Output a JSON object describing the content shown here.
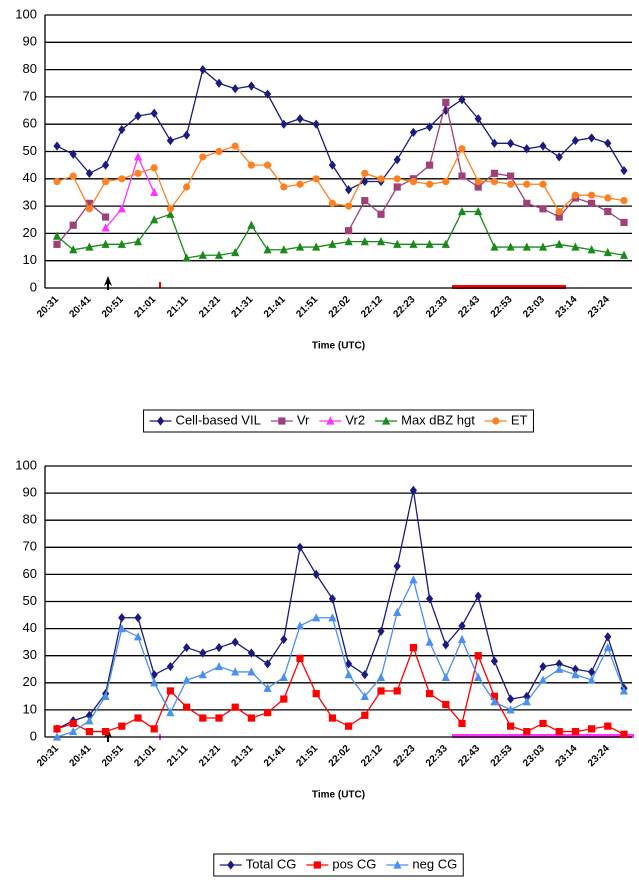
{
  "chart_data": [
    {
      "type": "line",
      "xlabel": "Time (UTC)",
      "categories": [
        "20:31",
        null,
        "20:41",
        null,
        "20:51",
        null,
        "21:01",
        null,
        "21:11",
        null,
        "21:21",
        null,
        "21:31",
        null,
        "21:41",
        null,
        "21:51",
        null,
        "22:02",
        null,
        "22:12",
        null,
        "22:23",
        null,
        "22:33",
        null,
        "22:43",
        null,
        "22:53",
        null,
        "23:03",
        null,
        "23:14",
        null,
        "23:24",
        null
      ],
      "series": [
        {
          "name": "Cell-based VIL",
          "color": "#1a1a80",
          "marker": "diamond",
          "values": [
            52,
            49,
            42,
            45,
            58,
            63,
            64,
            54,
            56,
            80,
            75,
            73,
            74,
            71,
            60,
            62,
            60,
            45,
            36,
            39,
            39,
            47,
            57,
            59,
            65,
            69,
            62,
            53,
            53,
            51,
            52,
            48,
            54,
            55,
            53,
            43
          ]
        },
        {
          "name": "Vr",
          "color": "#a0407a",
          "marker": "square",
          "values": [
            16,
            23,
            31,
            26,
            null,
            null,
            null,
            null,
            null,
            null,
            null,
            null,
            null,
            null,
            null,
            null,
            null,
            null,
            21,
            32,
            27,
            37,
            40,
            45,
            68,
            41,
            37,
            42,
            41,
            31,
            29,
            26,
            33,
            31,
            28,
            24
          ]
        },
        {
          "name": "Vr2",
          "color": "#ff33ff",
          "marker": "triangle",
          "values": [
            null,
            null,
            null,
            22,
            29,
            48,
            35,
            null,
            null,
            null,
            null,
            null,
            null,
            null,
            null,
            null,
            null,
            null,
            null,
            null,
            null,
            null,
            null,
            null,
            null,
            null,
            null,
            null,
            null,
            null,
            null,
            null,
            null,
            null,
            null,
            null
          ]
        },
        {
          "name": "Max dBZ hgt",
          "color": "#1a8a1a",
          "marker": "triangle",
          "values": [
            19,
            14,
            15,
            16,
            16,
            17,
            25,
            27,
            11,
            12,
            12,
            13,
            23,
            14,
            14,
            15,
            15,
            16,
            17,
            17,
            17,
            16,
            16,
            16,
            16,
            28,
            28,
            15,
            15,
            15,
            15,
            16,
            15,
            14,
            13,
            12
          ]
        },
        {
          "name": "ET",
          "color": "#ff8020",
          "marker": "circle",
          "values": [
            39,
            41,
            29,
            39,
            40,
            42,
            44,
            29,
            37,
            48,
            50,
            52,
            45,
            45,
            37,
            38,
            40,
            31,
            30,
            42,
            40,
            40,
            39,
            38,
            39,
            51,
            39,
            39,
            38,
            38,
            38,
            28,
            34,
            34,
            33,
            32
          ]
        }
      ],
      "ylim": [
        0,
        100
      ],
      "yticks": [
        0,
        10,
        20,
        30,
        40,
        50,
        60,
        70,
        80,
        90,
        100
      ],
      "grid": true
    },
    {
      "type": "line",
      "xlabel": "Time (UTC)",
      "categories": [
        "20:31",
        null,
        "20:41",
        null,
        "20:51",
        null,
        "21:01",
        null,
        "21:11",
        null,
        "21:21",
        null,
        "21:31",
        null,
        "21:41",
        null,
        "21:51",
        null,
        "22:02",
        null,
        "22:12",
        null,
        "22:23",
        null,
        "22:33",
        null,
        "22:43",
        null,
        "22:53",
        null,
        "23:03",
        null,
        "23:14",
        null,
        "23:24",
        null
      ],
      "series": [
        {
          "name": "Total CG",
          "color": "#1a1a80",
          "marker": "diamond",
          "values": [
            3,
            6,
            8,
            16,
            44,
            44,
            23,
            26,
            33,
            31,
            33,
            35,
            31,
            27,
            36,
            70,
            60,
            51,
            27,
            23,
            39,
            63,
            91,
            51,
            34,
            41,
            52,
            28,
            14,
            15,
            26,
            27,
            25,
            24,
            37,
            18
          ]
        },
        {
          "name": "pos CG",
          "color": "#ff0000",
          "marker": "square",
          "values": [
            3,
            5,
            2,
            2,
            4,
            7,
            3,
            17,
            11,
            7,
            7,
            11,
            7,
            9,
            14,
            29,
            16,
            7,
            4,
            8,
            17,
            17,
            33,
            16,
            12,
            5,
            30,
            15,
            4,
            2,
            5,
            2,
            2,
            3,
            4,
            1
          ]
        },
        {
          "name": "neg CG",
          "color": "#4a90f0",
          "marker": "triangle",
          "values": [
            0,
            2,
            6,
            15,
            40,
            37,
            20,
            9,
            21,
            23,
            26,
            24,
            24,
            18,
            22,
            41,
            44,
            44,
            23,
            15,
            22,
            46,
            58,
            35,
            22,
            36,
            22,
            13,
            10,
            13,
            21,
            25,
            23,
            21,
            33,
            17
          ]
        }
      ],
      "ylim": [
        0,
        100
      ],
      "yticks": [
        0,
        10,
        20,
        30,
        40,
        50,
        60,
        70,
        80,
        90,
        100
      ],
      "grid": true
    }
  ]
}
